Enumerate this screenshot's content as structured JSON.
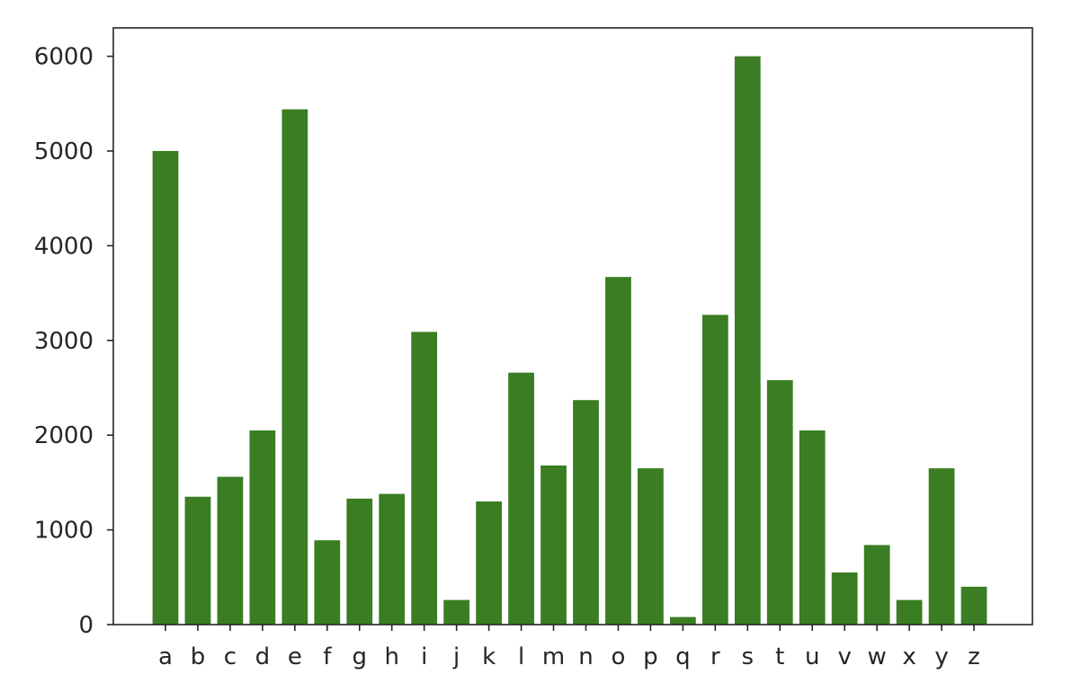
{
  "chart_data": {
    "type": "bar",
    "title": "",
    "xlabel": "",
    "ylabel": "",
    "bar_color": "#3a7d22",
    "ylim": [
      0,
      6300
    ],
    "yticks": [
      0,
      1000,
      2000,
      3000,
      4000,
      5000,
      6000
    ],
    "ytick_labels": [
      "0",
      "1000",
      "2000",
      "3000",
      "4000",
      "5000",
      "6000"
    ],
    "categories": [
      "a",
      "b",
      "c",
      "d",
      "e",
      "f",
      "g",
      "h",
      "i",
      "j",
      "k",
      "l",
      "m",
      "n",
      "o",
      "p",
      "q",
      "r",
      "s",
      "t",
      "u",
      "v",
      "w",
      "x",
      "y",
      "z"
    ],
    "values": [
      5000,
      1350,
      1560,
      2050,
      5440,
      890,
      1330,
      1380,
      3090,
      260,
      1300,
      2660,
      1680,
      2370,
      3670,
      1650,
      80,
      3270,
      6000,
      2580,
      2050,
      550,
      840,
      260,
      1650,
      400
    ],
    "grid": false,
    "legend": "none"
  }
}
